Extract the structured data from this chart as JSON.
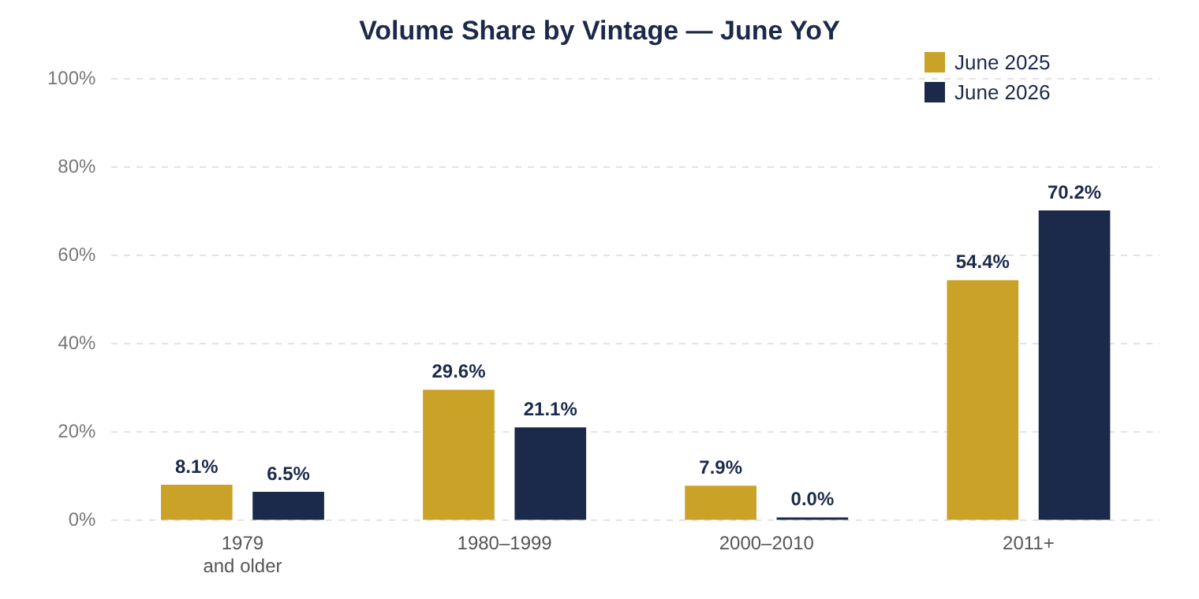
{
  "chart_data": {
    "type": "bar",
    "title": "Volume Share by Vintage — June YoY",
    "categories": [
      "1979\nand older",
      "1980–1999",
      "2000–2010",
      "2011+"
    ],
    "series": [
      {
        "name": "June 2025",
        "color": "#c9a227",
        "values": [
          8.1,
          29.6,
          7.9,
          54.4
        ],
        "value_labels": [
          "8.1%",
          "29.6%",
          "7.9%",
          "54.4%"
        ]
      },
      {
        "name": "June 2026",
        "color": "#1b2a4a",
        "values": [
          6.5,
          21.1,
          0.0,
          70.2
        ],
        "value_labels": [
          "6.5%",
          "21.1%",
          "0.0%",
          "70.2%"
        ]
      }
    ],
    "ylim": [
      0,
      100
    ],
    "yticks": [
      {
        "value": 0,
        "label": "0%"
      },
      {
        "value": 20,
        "label": "20%"
      },
      {
        "value": 40,
        "label": "40%"
      },
      {
        "value": 60,
        "label": "60%"
      },
      {
        "value": 80,
        "label": "80%"
      },
      {
        "value": 100,
        "label": "100%"
      }
    ],
    "grid": "y",
    "legend": "top right"
  }
}
